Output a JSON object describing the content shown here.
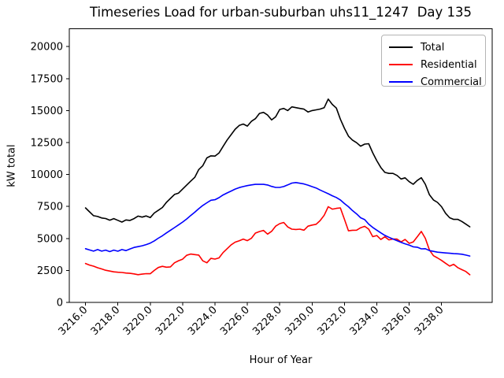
{
  "title": "Timeseries Load for urban-suburban uhs11_1247  Day 135",
  "chart_data": {
    "type": "line",
    "title": "Timeseries Load for urban-suburban uhs11_1247  Day 135",
    "xlabel": "Hour of Year",
    "ylabel": "kW total",
    "xlim": [
      3215.0,
      3241.13
    ],
    "ylim": [
      0,
      21400
    ],
    "grid": false,
    "legend_position": "upper right",
    "x_tick_values": [
      3216,
      3218,
      3220,
      3222,
      3224,
      3226,
      3228,
      3230,
      3232,
      3234,
      3236,
      3238
    ],
    "x_tick_labels": [
      "3216.0",
      "3218.0",
      "3220.0",
      "3222.0",
      "3224.0",
      "3226.0",
      "3228.0",
      "3230.0",
      "3232.0",
      "3234.0",
      "3236.0",
      "3238.0"
    ],
    "y_tick_values": [
      0,
      2500,
      5000,
      7500,
      10000,
      12500,
      15000,
      17500,
      20000
    ],
    "y_tick_labels": [
      "0",
      "2500",
      "5000",
      "7500",
      "10000",
      "12500",
      "15000",
      "17500",
      "20000"
    ],
    "x": [
      3216,
      3216.25,
      3216.5,
      3216.75,
      3217,
      3217.25,
      3217.5,
      3217.75,
      3218,
      3218.25,
      3218.5,
      3218.75,
      3219,
      3219.25,
      3219.5,
      3219.75,
      3220,
      3220.25,
      3220.5,
      3220.75,
      3221,
      3221.25,
      3221.5,
      3221.75,
      3222,
      3222.25,
      3222.5,
      3222.75,
      3223,
      3223.25,
      3223.5,
      3223.75,
      3224,
      3224.25,
      3224.5,
      3224.75,
      3225,
      3225.25,
      3225.5,
      3225.75,
      3226,
      3226.25,
      3226.5,
      3226.75,
      3227,
      3227.25,
      3227.5,
      3227.75,
      3228,
      3228.25,
      3228.5,
      3228.75,
      3229,
      3229.25,
      3229.5,
      3229.75,
      3230,
      3230.25,
      3230.5,
      3230.75,
      3231,
      3231.25,
      3231.5,
      3231.75,
      3232,
      3232.25,
      3232.5,
      3232.75,
      3233,
      3233.25,
      3233.5,
      3233.75,
      3234,
      3234.25,
      3234.5,
      3234.75,
      3235,
      3235.25,
      3235.5,
      3235.75,
      3236,
      3236.25,
      3236.5,
      3236.75,
      3237,
      3237.25,
      3237.5,
      3237.75,
      3238,
      3238.25,
      3238.5,
      3238.75,
      3239,
      3239.25,
      3239.5,
      3239.75
    ],
    "series": [
      {
        "name": "Total",
        "color": "#000000",
        "values": [
          7390,
          7080,
          6780,
          6720,
          6600,
          6560,
          6430,
          6550,
          6420,
          6280,
          6450,
          6410,
          6550,
          6750,
          6670,
          6760,
          6630,
          6990,
          7200,
          7420,
          7820,
          8130,
          8440,
          8550,
          8860,
          9170,
          9480,
          9780,
          10390,
          10690,
          11300,
          11460,
          11440,
          11680,
          12190,
          12700,
          13120,
          13540,
          13840,
          13950,
          13790,
          14160,
          14370,
          14780,
          14860,
          14650,
          14270,
          14510,
          15090,
          15170,
          15000,
          15290,
          15230,
          15170,
          15110,
          14890,
          15000,
          15060,
          15120,
          15230,
          15900,
          15480,
          15200,
          14330,
          13610,
          13000,
          12690,
          12490,
          12220,
          12380,
          12410,
          11700,
          11080,
          10550,
          10170,
          10090,
          10090,
          9930,
          9650,
          9740,
          9440,
          9240,
          9530,
          9750,
          9240,
          8420,
          8010,
          7820,
          7480,
          6970,
          6620,
          6490,
          6500,
          6330,
          6120,
          5910
        ]
      },
      {
        "name": "Residential",
        "color": "#ff0000",
        "values": [
          3040,
          2920,
          2830,
          2710,
          2620,
          2510,
          2450,
          2390,
          2360,
          2340,
          2300,
          2270,
          2230,
          2170,
          2210,
          2250,
          2240,
          2500,
          2730,
          2820,
          2750,
          2780,
          3100,
          3260,
          3380,
          3680,
          3780,
          3740,
          3700,
          3250,
          3100,
          3440,
          3390,
          3480,
          3890,
          4200,
          4500,
          4710,
          4820,
          4950,
          4830,
          5010,
          5420,
          5540,
          5630,
          5340,
          5560,
          5960,
          6160,
          6250,
          5900,
          5730,
          5700,
          5730,
          5650,
          5960,
          6050,
          6110,
          6400,
          6820,
          7480,
          7290,
          7350,
          7390,
          6500,
          5600,
          5640,
          5650,
          5840,
          5950,
          5730,
          5140,
          5230,
          4920,
          5130,
          4890,
          4960,
          4950,
          4730,
          4920,
          4620,
          4730,
          5130,
          5550,
          5010,
          4100,
          3650,
          3480,
          3280,
          3060,
          2840,
          2980,
          2720,
          2560,
          2420,
          2160
        ]
      },
      {
        "name": "Commercial",
        "color": "#0000ff",
        "values": [
          4200,
          4100,
          4010,
          4130,
          4010,
          4090,
          3970,
          4090,
          4000,
          4130,
          4050,
          4180,
          4300,
          4360,
          4430,
          4520,
          4640,
          4810,
          5020,
          5210,
          5430,
          5640,
          5850,
          6060,
          6280,
          6520,
          6790,
          7050,
          7330,
          7580,
          7790,
          7990,
          8030,
          8190,
          8400,
          8560,
          8710,
          8860,
          8980,
          9060,
          9130,
          9190,
          9230,
          9230,
          9230,
          9180,
          9070,
          8990,
          8990,
          9060,
          9190,
          9330,
          9370,
          9320,
          9260,
          9170,
          9050,
          8950,
          8790,
          8640,
          8500,
          8340,
          8200,
          8010,
          7730,
          7480,
          7180,
          6920,
          6620,
          6470,
          6120,
          5860,
          5650,
          5440,
          5240,
          5090,
          4960,
          4830,
          4700,
          4580,
          4480,
          4350,
          4320,
          4190,
          4200,
          4050,
          3990,
          3930,
          3900,
          3870,
          3840,
          3810,
          3800,
          3770,
          3700,
          3630
        ]
      }
    ]
  }
}
